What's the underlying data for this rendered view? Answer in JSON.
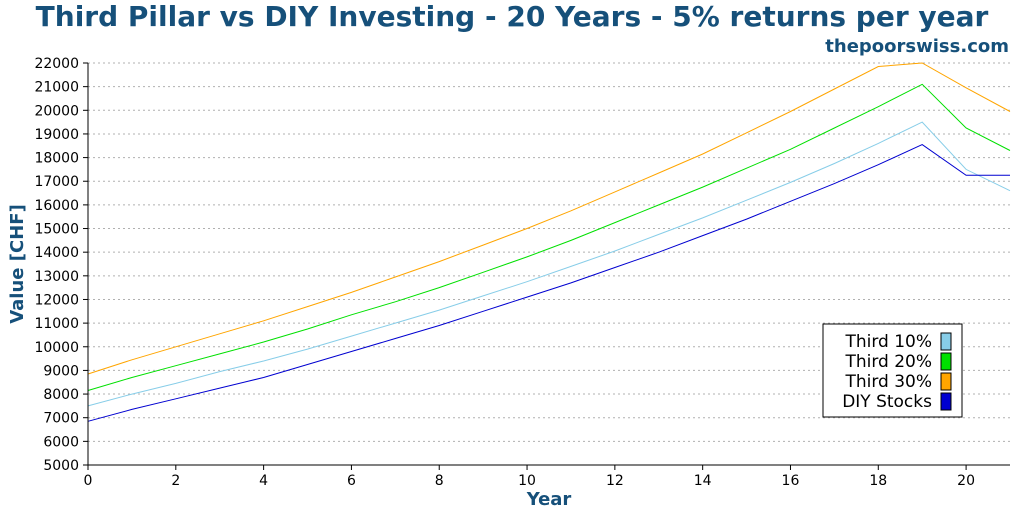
{
  "chart_data": {
    "type": "line",
    "title": "Third Pillar vs DIY Investing - 20 Years - 5% returns per year",
    "subtitle": "thepoorswiss.com",
    "xlabel": "Year",
    "ylabel": "Value [CHF]",
    "xlim": [
      0,
      21
    ],
    "ylim": [
      5000,
      22000
    ],
    "xticks": [
      0,
      2,
      4,
      6,
      8,
      10,
      12,
      14,
      16,
      18,
      20
    ],
    "yticks": [
      5000,
      6000,
      7000,
      8000,
      9000,
      10000,
      11000,
      12000,
      13000,
      14000,
      15000,
      16000,
      17000,
      18000,
      19000,
      20000,
      21000,
      22000
    ],
    "grid": "horizontal dotted",
    "legend_position": "bottom-right",
    "x": [
      0,
      1,
      2,
      3,
      4,
      5,
      6,
      7,
      8,
      9,
      10,
      11,
      12,
      13,
      14,
      15,
      16,
      17,
      18,
      19,
      20,
      21
    ],
    "series": [
      {
        "name": "Third 10%",
        "color": "#87cde8",
        "values": [
          7500,
          8000,
          8450,
          8950,
          9400,
          9900,
          10450,
          11000,
          11550,
          12150,
          12750,
          13400,
          14050,
          14750,
          15450,
          16200,
          16950,
          17750,
          18600,
          19500,
          17500,
          16600
        ]
      },
      {
        "name": "Third 20%",
        "color": "#00e000",
        "values": [
          8150,
          8700,
          9200,
          9700,
          10200,
          10750,
          11350,
          11900,
          12500,
          13150,
          13800,
          14500,
          15250,
          16000,
          16750,
          17550,
          18350,
          19250,
          20150,
          21100,
          19250,
          18300
        ]
      },
      {
        "name": "Third 30%",
        "color": "#ffa500",
        "values": [
          8850,
          9450,
          10000,
          10550,
          11100,
          11700,
          12300,
          12950,
          13600,
          14300,
          15000,
          15750,
          16550,
          17350,
          18150,
          19050,
          19950,
          20900,
          21850,
          22850,
          20950,
          19950
        ]
      },
      {
        "name": "DIY Stocks",
        "color": "#0000d0",
        "values": [
          6850,
          7350,
          7800,
          8250,
          8700,
          9250,
          9800,
          10350,
          10900,
          11500,
          12100,
          12700,
          13350,
          14000,
          14700,
          15400,
          16150,
          16900,
          17700,
          18550,
          17250,
          17250
        ]
      }
    ]
  }
}
